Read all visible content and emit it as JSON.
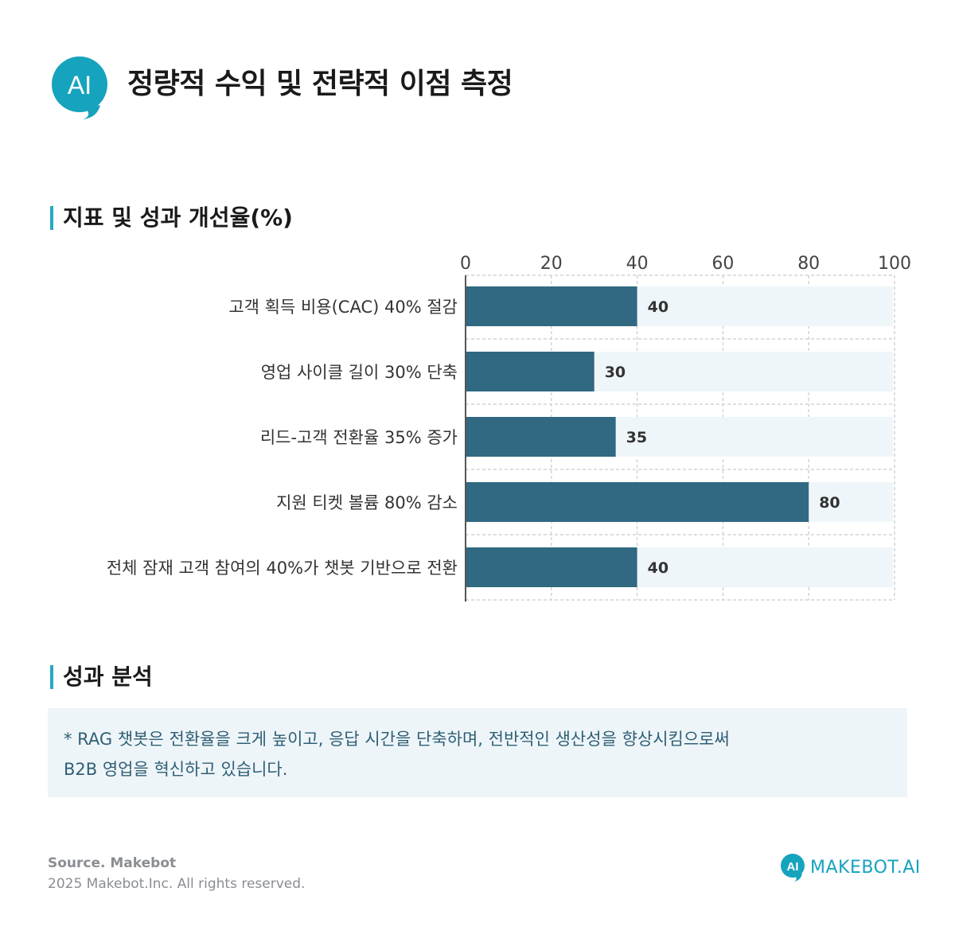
{
  "header": {
    "logo_text": "AI",
    "logo_icon": "ai-speech-bubble-icon",
    "title": "정량적 수익 및 전략적 이점 측정"
  },
  "chart_section": {
    "heading": "지표 및 성과 개선율(%)"
  },
  "chart_data": {
    "type": "bar",
    "orientation": "horizontal",
    "title": "",
    "xlabel": "",
    "ylabel": "",
    "xlim": [
      0,
      100
    ],
    "xticks": [
      "0",
      "20",
      "40",
      "60",
      "80",
      "100"
    ],
    "grid": true,
    "categories": [
      "고객 획득 비용(CAC) 40% 절감",
      "영업 사이클 길이 30% 단축",
      "리드-고객 전환율 35% 증가",
      "지원 티켓 볼륨 80% 감소",
      "전체 잠재 고객 참여의 40%가 챗봇 기반으로 전환"
    ],
    "values": [
      40,
      30,
      35,
      80,
      40
    ],
    "data_labels": [
      "40",
      "30",
      "35",
      "80",
      "40"
    ],
    "bar_color": "#306981",
    "track_color": "#eff6f9"
  },
  "analysis_section": {
    "heading": "성과 분석",
    "text": "* RAG 챗봇은 전환율을 크게 높이고, 응답 시간을 단축하며, 전반적인 생산성을 향상시킴으로써\nB2B 영업을 혁신하고 있습니다."
  },
  "footer": {
    "source": "Source. Makebot",
    "copyright": "2025 Makebot.Inc. All rights reserved.",
    "brand": "MAKEBOT.AI",
    "brand_icon": "makebot-logo-icon"
  },
  "colors": {
    "accent": "#16a3bd",
    "heading_bar": "#2aa7bf",
    "bar": "#306981",
    "track": "#eff6f9",
    "analysis_bg": "#eef5f8",
    "analysis_text": "#2f5f76"
  }
}
